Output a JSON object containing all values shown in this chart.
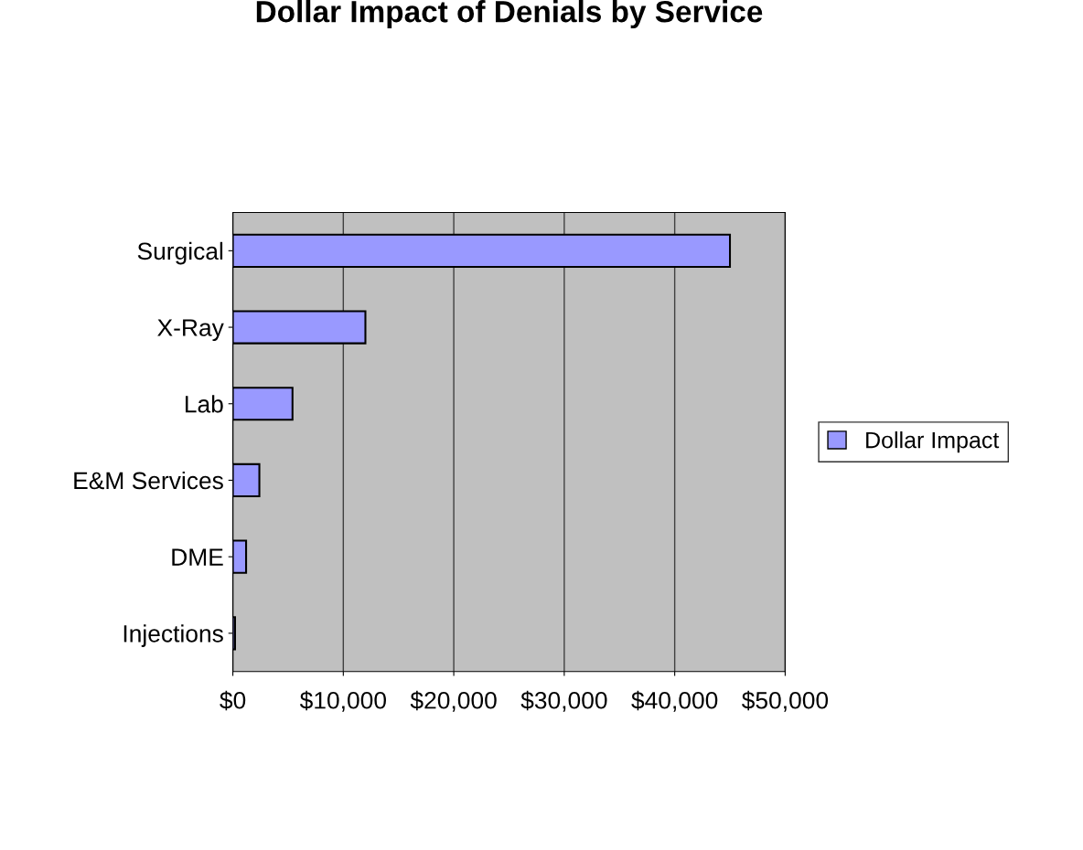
{
  "chart_data": {
    "type": "bar",
    "orientation": "horizontal",
    "title": "Dollar Impact of Denials by Service",
    "categories": [
      "Surgical",
      "X-Ray",
      "Lab",
      "E&M Services",
      "DME",
      "Injections"
    ],
    "series": [
      {
        "name": "Dollar Impact",
        "color": "#9999ff",
        "values": [
          45000,
          12000,
          5400,
          2400,
          1200,
          200
        ]
      }
    ],
    "xlim": [
      0,
      50000
    ],
    "xticks": [
      {
        "value": 0,
        "label": "$0"
      },
      {
        "value": 10000,
        "label": "$10,000"
      },
      {
        "value": 20000,
        "label": "$20,000"
      },
      {
        "value": 30000,
        "label": "$30,000"
      },
      {
        "value": 40000,
        "label": "$40,000"
      },
      {
        "value": 50000,
        "label": "$50,000"
      }
    ],
    "grid": "x",
    "legend": "right"
  }
}
